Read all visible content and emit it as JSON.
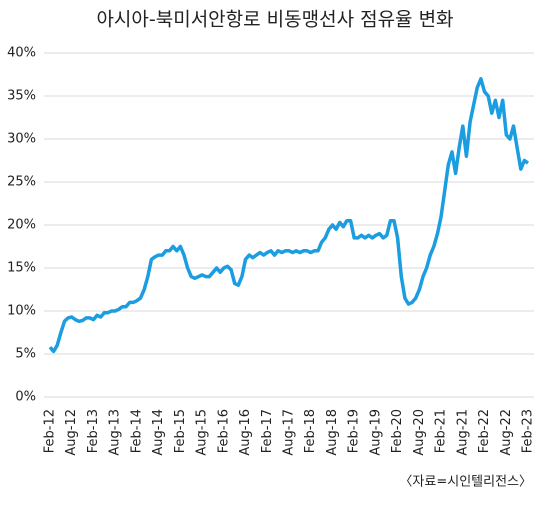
{
  "chart_data": {
    "type": "line",
    "title": "아시아-북미서안항로 비동맹선사 점유율 변화",
    "annotations": [
      "〈자료=시인텔리전스〉"
    ],
    "categories": [
      "Feb-12",
      null,
      null,
      null,
      null,
      null,
      "Aug-12",
      null,
      null,
      null,
      null,
      null,
      "Feb-13",
      null,
      null,
      null,
      null,
      null,
      "Aug-13",
      null,
      null,
      null,
      null,
      null,
      "Feb-14",
      null,
      null,
      null,
      null,
      null,
      "Aug-14",
      null,
      null,
      null,
      null,
      null,
      "Feb-15",
      null,
      null,
      null,
      null,
      null,
      "Aug-15",
      null,
      null,
      null,
      null,
      null,
      "Feb-16",
      null,
      null,
      null,
      null,
      null,
      "Aug-16",
      null,
      null,
      null,
      null,
      null,
      "Feb-17",
      null,
      null,
      null,
      null,
      null,
      "Aug-17",
      null,
      null,
      null,
      null,
      null,
      "Feb-18",
      null,
      null,
      null,
      null,
      null,
      "Aug-18",
      null,
      null,
      null,
      null,
      null,
      "Feb-19",
      null,
      null,
      null,
      null,
      null,
      "Aug-19",
      null,
      null,
      null,
      null,
      null,
      "Feb-20",
      null,
      null,
      null,
      null,
      null,
      "Aug-20",
      null,
      null,
      null,
      null,
      null,
      "Feb-21",
      null,
      null,
      null,
      null,
      null,
      "Aug-21",
      null,
      null,
      null,
      null,
      null,
      "Feb-22",
      null,
      null,
      null,
      null,
      null,
      "Aug-22",
      null,
      null,
      null,
      null,
      null,
      "Feb-23"
    ],
    "series": [
      {
        "color": "#1b9de2",
        "values": [
          5.8,
          5.3,
          6,
          7.5,
          8.8,
          9.2,
          9.3,
          9,
          8.8,
          8.9,
          9.2,
          9.2,
          9,
          9.5,
          9.3,
          9.8,
          9.8,
          10,
          10,
          10.2,
          10.5,
          10.5,
          11,
          11,
          11.2,
          11.5,
          12.5,
          14,
          16,
          16.3,
          16.5,
          16.5,
          17,
          17,
          17.5,
          17,
          17.5,
          16.5,
          15,
          14,
          13.8,
          14,
          14.2,
          14,
          14,
          14.5,
          15,
          14.5,
          15,
          15.2,
          14.8,
          13.2,
          13,
          14,
          16,
          16.5,
          16.2,
          16.5,
          16.8,
          16.5,
          16.8,
          17,
          16.5,
          17,
          16.8,
          17,
          17,
          16.8,
          17,
          16.8,
          17,
          17,
          16.8,
          17,
          17,
          18,
          18.5,
          19.5,
          20,
          19.5,
          20.3,
          19.8,
          20.5,
          20.5,
          18.5,
          18.5,
          18.8,
          18.5,
          18.8,
          18.5,
          18.8,
          19,
          18.5,
          18.8,
          20.5,
          20.5,
          18.5,
          14,
          11.5,
          10.8,
          11,
          11.5,
          12.5,
          14,
          15,
          16.5,
          17.5,
          19,
          21,
          24,
          27,
          28.5,
          26,
          29,
          31.5,
          28,
          32,
          34,
          36,
          37,
          35.5,
          35,
          33,
          34.5,
          32.5,
          34.5,
          30.5,
          30,
          31.5,
          29,
          26.5,
          27.5,
          27.2
        ]
      }
    ],
    "ylim": [
      0,
      40
    ],
    "yticks": [
      {
        "value": 0,
        "label": "0%"
      },
      {
        "value": 5,
        "label": "5%"
      },
      {
        "value": 10,
        "label": "10%"
      },
      {
        "value": 15,
        "label": "15%"
      },
      {
        "value": 20,
        "label": "20%"
      },
      {
        "value": 25,
        "label": "25%"
      },
      {
        "value": 30,
        "label": "30%"
      },
      {
        "value": 35,
        "label": "35%"
      },
      {
        "value": 40,
        "label": "40%"
      }
    ],
    "grid": true
  }
}
